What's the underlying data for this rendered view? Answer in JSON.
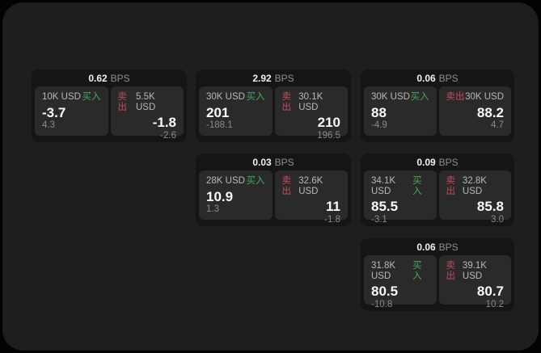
{
  "theme": {
    "outside_bg": "#030303",
    "container_bg": "#1e1e1e",
    "card_bg": "#151515",
    "panel_bg": "#2a2a2a",
    "buy_green": "#48a95e",
    "sell_red": "#c64a60",
    "value_white": "#fafafa",
    "label_gray": "#b9b9b9",
    "delta_gray": "#8a8a8a"
  },
  "labels": {
    "bps": "BPS",
    "buy": "买入",
    "sell": "卖出"
  },
  "cards": [
    {
      "bps": "0.62",
      "buy": {
        "amount": "10K USD",
        "value": "-3.7",
        "delta": "4.3"
      },
      "sell": {
        "amount": "5.5K USD",
        "value": "-1.8",
        "delta": "-2.6"
      }
    },
    {
      "bps": "2.92",
      "buy": {
        "amount": "30K USD",
        "value": "201",
        "delta": "-188.1"
      },
      "sell": {
        "amount": "30.1K USD",
        "value": "210",
        "delta": "196.5"
      }
    },
    {
      "bps": "0.03",
      "buy": {
        "amount": "28K USD",
        "value": "10.9",
        "delta": "1.3"
      },
      "sell": {
        "amount": "32.6K USD",
        "value": "11",
        "delta": "-1.8"
      }
    },
    {
      "bps": "0.06",
      "buy": {
        "amount": "30K USD",
        "value": "88",
        "delta": "-4.9"
      },
      "sell": {
        "amount": "30K USD",
        "value": "88.2",
        "delta": "4.7"
      }
    },
    {
      "bps": "0.09",
      "buy": {
        "amount": "34.1K USD",
        "value": "85.5",
        "delta": "-3.1"
      },
      "sell": {
        "amount": "32.8K USD",
        "value": "85.8",
        "delta": "3.0"
      }
    },
    {
      "bps": "0.06",
      "buy": {
        "amount": "31.8K USD",
        "value": "80.5",
        "delta": "-10.8"
      },
      "sell": {
        "amount": "39.1K USD",
        "value": "80.7",
        "delta": "10.2"
      }
    }
  ]
}
